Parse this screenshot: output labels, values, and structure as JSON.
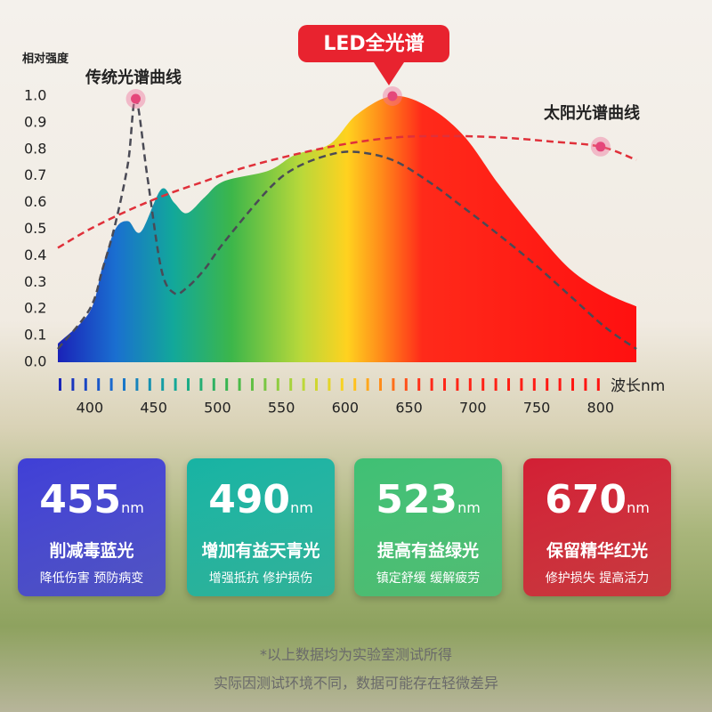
{
  "chart_data": {
    "type": "area",
    "y_label": "相对强度",
    "x_label": "波长nm",
    "xlim": [
      375,
      828
    ],
    "ylim": [
      0,
      1.0
    ],
    "xticks": [
      400,
      450,
      500,
      550,
      600,
      650,
      700,
      750,
      800
    ],
    "yticks": [
      {
        "value": 0,
        "label": "0.0"
      },
      0.1,
      0.2,
      0.3,
      0.4,
      0.5,
      0.6,
      0.7,
      0.8,
      0.9,
      {
        "value": 1,
        "label": "1.0"
      }
    ],
    "x": [
      375,
      400,
      410,
      420,
      430,
      440,
      456,
      466,
      476,
      490,
      505,
      540,
      561,
      588,
      609,
      637,
      665,
      693,
      720,
      748,
      776,
      804,
      828
    ],
    "series": [
      {
        "name": "LED全光谱",
        "style": "area",
        "values": [
          0.07,
          0.19,
          0.36,
          0.5,
          0.53,
          0.49,
          0.65,
          0.6,
          0.56,
          0.62,
          0.68,
          0.72,
          0.78,
          0.82,
          0.93,
          1.0,
          0.96,
          0.85,
          0.67,
          0.5,
          0.35,
          0.26,
          0.21
        ],
        "marker": 15
      },
      {
        "name": "传统光谱曲线",
        "style": "dashed",
        "color": "#4a4a55",
        "x": [
          375,
          400,
          410,
          420,
          430,
          436,
          445,
          456,
          466,
          476,
          490,
          505,
          540,
          561,
          588,
          609,
          637,
          665,
          693,
          720,
          748,
          776,
          804,
          828
        ],
        "values": [
          0.05,
          0.2,
          0.35,
          0.52,
          0.75,
          0.99,
          0.7,
          0.35,
          0.26,
          0.28,
          0.35,
          0.45,
          0.65,
          0.73,
          0.78,
          0.79,
          0.76,
          0.68,
          0.58,
          0.48,
          0.37,
          0.25,
          0.13,
          0.05
        ],
        "marker": 5
      },
      {
        "name": "太阳光谱曲线",
        "style": "dashed",
        "color": "#e0303a",
        "x": [
          375,
          400,
          430,
          460,
          490,
          520,
          560,
          600,
          640,
          680,
          720,
          760,
          800,
          828
        ],
        "values": [
          0.43,
          0.5,
          0.57,
          0.63,
          0.68,
          0.73,
          0.78,
          0.82,
          0.845,
          0.85,
          0.845,
          0.83,
          0.81,
          0.76
        ],
        "marker": 12
      }
    ]
  },
  "cards": [
    {
      "value": "455",
      "unit": "nm",
      "title": "削减毒蓝光",
      "desc": "降低伤害 预防病变",
      "color": "#3f3fd6"
    },
    {
      "value": "490",
      "unit": "nm",
      "title": "增加有益天青光",
      "desc": "增强抵抗 修护损伤",
      "color": "#17b3a3"
    },
    {
      "value": "523",
      "unit": "nm",
      "title": "提高有益绿光",
      "desc": "镇定舒缓 缓解疲劳",
      "color": "#3fc074"
    },
    {
      "value": "670",
      "unit": "nm",
      "title": "保留精华红光",
      "desc": "修护损失 提高活力",
      "color": "#d21f34"
    }
  ],
  "footnote": [
    "*以上数据均为实验室测试所得",
    "实际因测试环境不同，数据可能存在轻微差异"
  ]
}
